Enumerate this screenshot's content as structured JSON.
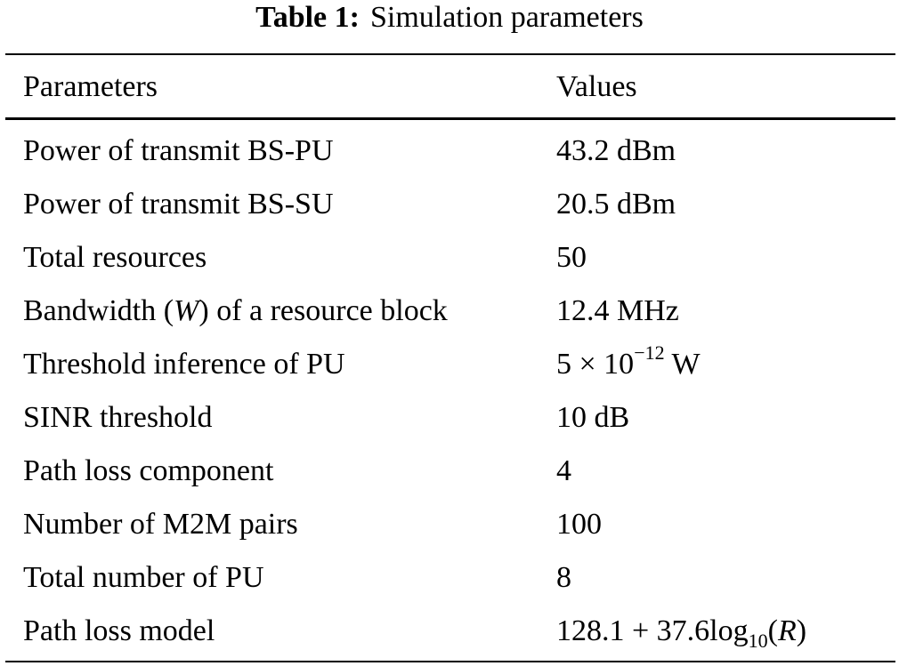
{
  "caption": {
    "label": "Table 1:",
    "title": "Simulation parameters"
  },
  "table": {
    "headers": [
      "Parameters",
      "Values"
    ],
    "rows": [
      {
        "parameter": "Power of transmit BS-PU",
        "value": "43.2 dBm"
      },
      {
        "parameter": "Power of transmit BS-SU",
        "value": "20.5 dBm"
      },
      {
        "parameter": "Total resources",
        "value": "50"
      },
      {
        "parameter_pre": "Bandwidth (",
        "parameter_var": "W",
        "parameter_post": ") of a resource block",
        "value": "12.4 MHz"
      },
      {
        "parameter": "Threshold inference of PU",
        "value_base": "5 × 10",
        "value_exp": "−12",
        "value_unit": " W"
      },
      {
        "parameter": "SINR threshold",
        "value": "10 dB"
      },
      {
        "parameter": "Path loss component",
        "value": "4"
      },
      {
        "parameter": "Number of M2M pairs",
        "value": "100"
      },
      {
        "parameter": "Total number of PU",
        "value": "8"
      },
      {
        "parameter": "Path loss model",
        "value_main": "128.1 + 37.6log",
        "value_sub": "10",
        "value_open": "(",
        "value_var": "R",
        "value_close": ")"
      }
    ]
  }
}
